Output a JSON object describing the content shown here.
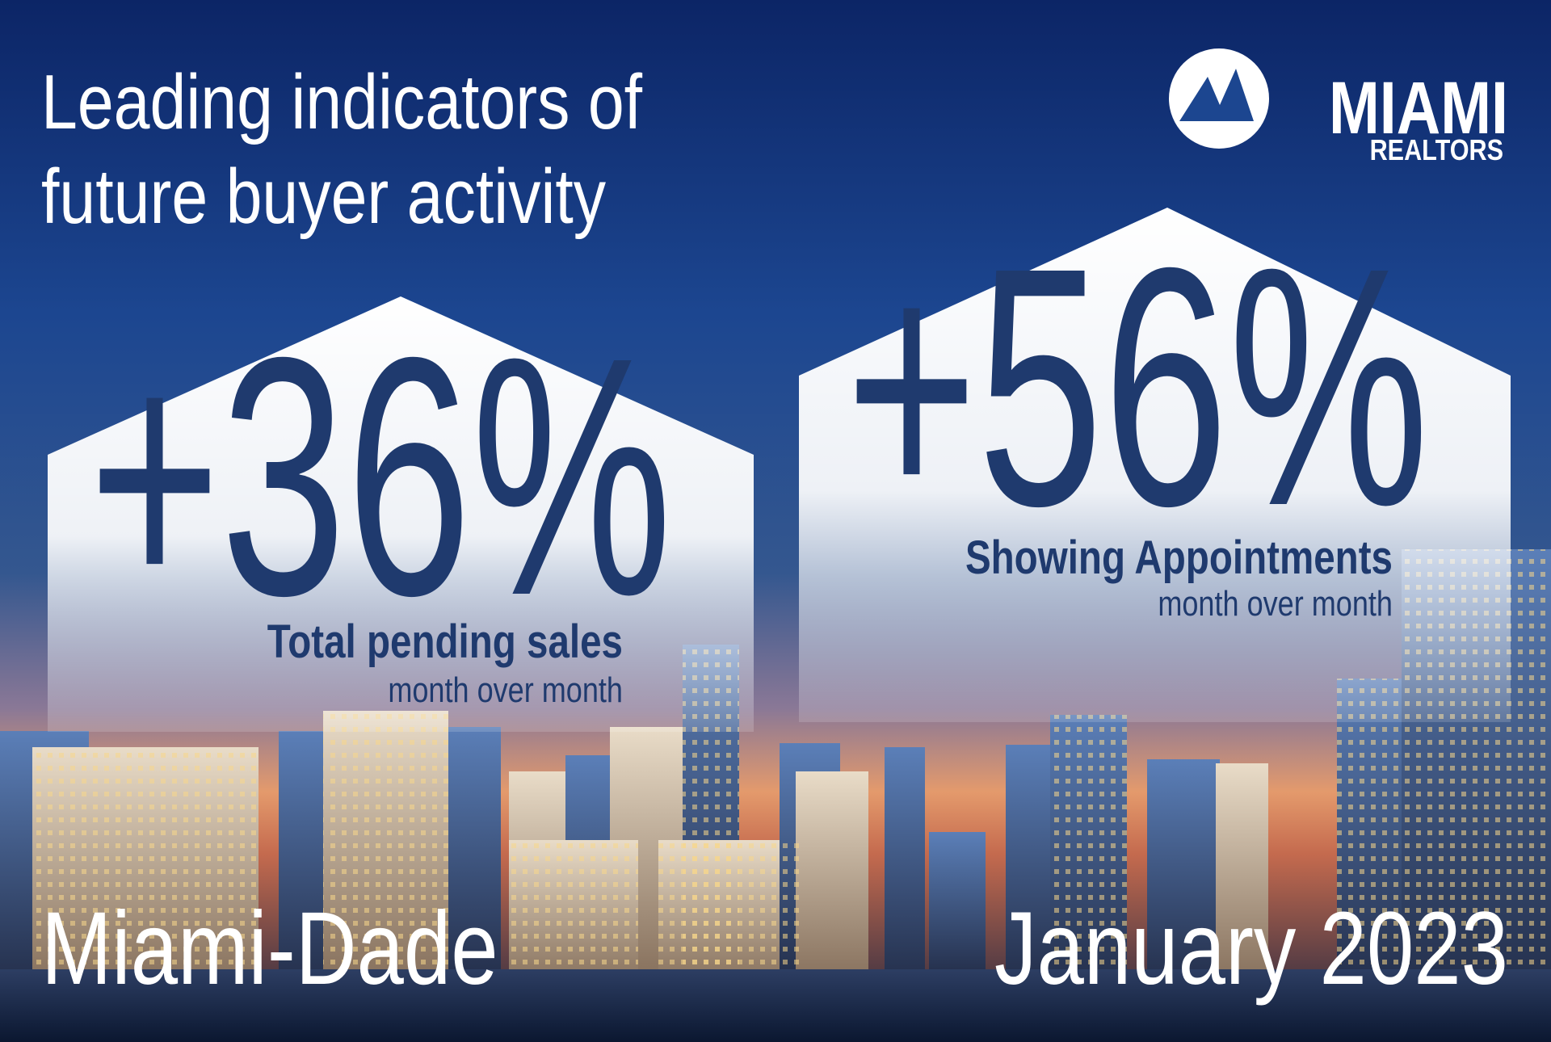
{
  "header": {
    "title_lines": [
      "Leading indicators of",
      "future buyer activity"
    ]
  },
  "logo": {
    "name": "MIAMI",
    "subtitle": "REALTORS"
  },
  "stats": [
    {
      "value": "+36%",
      "label": "Total pending sales",
      "period": "month over month"
    },
    {
      "value": "+56%",
      "label": "Showing Appointments",
      "period": "month over month"
    }
  ],
  "footer": {
    "region": "Miami-Dade",
    "date": "January 2023"
  }
}
